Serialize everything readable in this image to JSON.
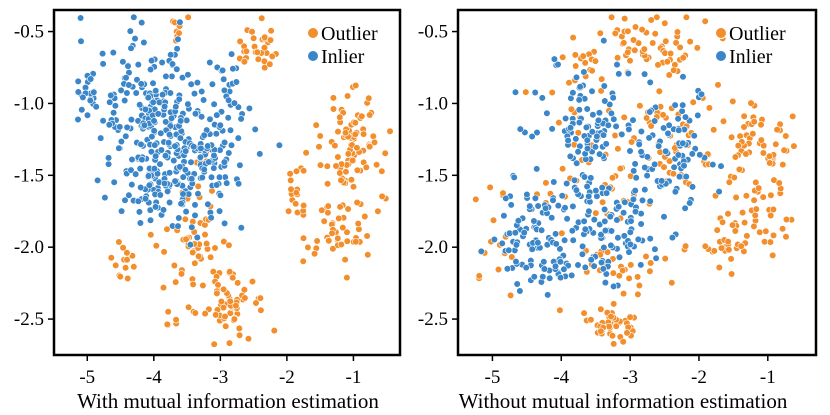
{
  "colors": {
    "outlier": "#f28e2b",
    "inlier": "#3a86c8",
    "point_edge": "#ffffff",
    "frame": "#000000"
  },
  "chart_data": [
    {
      "type": "scatter",
      "title": "",
      "caption": "With mutual information estimation",
      "xlabel": "",
      "ylabel": "",
      "xlim": [
        -5.5,
        -0.3
      ],
      "ylim": [
        -2.75,
        -0.35
      ],
      "x_ticks": [
        -5,
        -4,
        -3,
        -2,
        -1
      ],
      "x_tick_labels": [
        "-5",
        "-4",
        "-3",
        "-2",
        "-1"
      ],
      "y_ticks": [
        -0.5,
        -1.0,
        -1.5,
        -2.0,
        -2.5
      ],
      "y_tick_labels": [
        "-0.5",
        "-1.0",
        "-1.5",
        "-2.0",
        "-2.5"
      ],
      "grid": false,
      "legend": {
        "position": "top-right",
        "entries": [
          "Outlier",
          "Inlier"
        ]
      },
      "series": [
        {
          "name": "Outlier",
          "clusters": [
            {
              "center": [
                -2.42,
                -0.62
              ],
              "spread": [
                0.2,
                0.1
              ],
              "count": 30
            },
            {
              "center": [
                -3.65,
                -0.5
              ],
              "spread": [
                0.08,
                0.06
              ],
              "count": 8
            },
            {
              "center": [
                -1.05,
                -1.3
              ],
              "spread": [
                0.28,
                0.22
              ],
              "count": 90
            },
            {
              "center": [
                -1.25,
                -1.9
              ],
              "spread": [
                0.28,
                0.15
              ],
              "count": 45
            },
            {
              "center": [
                -1.85,
                -1.65
              ],
              "spread": [
                0.1,
                0.2
              ],
              "count": 18
            },
            {
              "center": [
                -3.4,
                -2.0
              ],
              "spread": [
                0.3,
                0.18
              ],
              "count": 45
            },
            {
              "center": [
                -4.45,
                -2.1
              ],
              "spread": [
                0.15,
                0.1
              ],
              "count": 14
            },
            {
              "center": [
                -2.85,
                -2.4
              ],
              "spread": [
                0.3,
                0.15
              ],
              "count": 60
            },
            {
              "center": [
                -3.8,
                -2.5
              ],
              "spread": [
                0.12,
                0.06
              ],
              "count": 5
            },
            {
              "center": [
                -3.2,
                -1.55
              ],
              "spread": [
                0.2,
                0.2
              ],
              "count": 10
            }
          ]
        },
        {
          "name": "Inlier",
          "clusters": [
            {
              "center": [
                -4.1,
                -1.0
              ],
              "spread": [
                0.5,
                0.35
              ],
              "count": 170
            },
            {
              "center": [
                -3.3,
                -1.35
              ],
              "spread": [
                0.45,
                0.25
              ],
              "count": 140
            },
            {
              "center": [
                -4.0,
                -1.55
              ],
              "spread": [
                0.4,
                0.2
              ],
              "count": 80
            },
            {
              "center": [
                -5.0,
                -0.95
              ],
              "spread": [
                0.12,
                0.08
              ],
              "count": 15
            },
            {
              "center": [
                -2.85,
                -0.85
              ],
              "spread": [
                0.15,
                0.2
              ],
              "count": 20
            }
          ]
        }
      ]
    },
    {
      "type": "scatter",
      "title": "",
      "caption": "Without mutual information estimation",
      "xlabel": "",
      "ylabel": "",
      "xlim": [
        -5.5,
        -0.3
      ],
      "ylim": [
        -2.75,
        -0.35
      ],
      "x_ticks": [
        -5,
        -4,
        -3,
        -2,
        -1
      ],
      "x_tick_labels": [
        "-5",
        "-4",
        "-3",
        "-2",
        "-1"
      ],
      "y_ticks": [
        -0.5,
        -1.0,
        -1.5,
        -2.0,
        -2.5
      ],
      "y_tick_labels": [
        "-0.5",
        "-1.0",
        "-1.5",
        "-2.0",
        "-2.5"
      ],
      "grid": false,
      "legend": {
        "position": "top-right",
        "entries": [
          "Outlier",
          "Inlier"
        ]
      },
      "series": [
        {
          "name": "Outlier",
          "clusters": [
            {
              "center": [
                -2.7,
                -0.6
              ],
              "spread": [
                0.45,
                0.13
              ],
              "count": 60
            },
            {
              "center": [
                -3.8,
                -0.75
              ],
              "spread": [
                0.3,
                0.12
              ],
              "count": 18
            },
            {
              "center": [
                -1.1,
                -1.3
              ],
              "spread": [
                0.3,
                0.15
              ],
              "count": 45
            },
            {
              "center": [
                -1.2,
                -1.75
              ],
              "spread": [
                0.35,
                0.18
              ],
              "count": 45
            },
            {
              "center": [
                -1.6,
                -2.0
              ],
              "spread": [
                0.2,
                0.15
              ],
              "count": 20
            },
            {
              "center": [
                -3.3,
                -2.55
              ],
              "spread": [
                0.3,
                0.08
              ],
              "count": 40
            },
            {
              "center": [
                -4.9,
                -1.9
              ],
              "spread": [
                0.25,
                0.25
              ],
              "count": 15
            },
            {
              "center": [
                -2.4,
                -1.2
              ],
              "spread": [
                0.6,
                0.35
              ],
              "count": 60
            },
            {
              "center": [
                -3.6,
                -1.6
              ],
              "spread": [
                0.6,
                0.45
              ],
              "count": 50
            },
            {
              "center": [
                -3.0,
                -2.15
              ],
              "spread": [
                0.5,
                0.12
              ],
              "count": 25
            }
          ]
        },
        {
          "name": "Inlier",
          "clusters": [
            {
              "center": [
                -3.6,
                -1.2
              ],
              "spread": [
                0.45,
                0.3
              ],
              "count": 110
            },
            {
              "center": [
                -2.4,
                -1.35
              ],
              "spread": [
                0.4,
                0.25
              ],
              "count": 80
            },
            {
              "center": [
                -4.4,
                -1.85
              ],
              "spread": [
                0.45,
                0.25
              ],
              "count": 80
            },
            {
              "center": [
                -3.2,
                -1.85
              ],
              "spread": [
                0.5,
                0.25
              ],
              "count": 90
            },
            {
              "center": [
                -4.0,
                -2.15
              ],
              "spread": [
                0.4,
                0.1
              ],
              "count": 30
            }
          ]
        }
      ]
    }
  ]
}
